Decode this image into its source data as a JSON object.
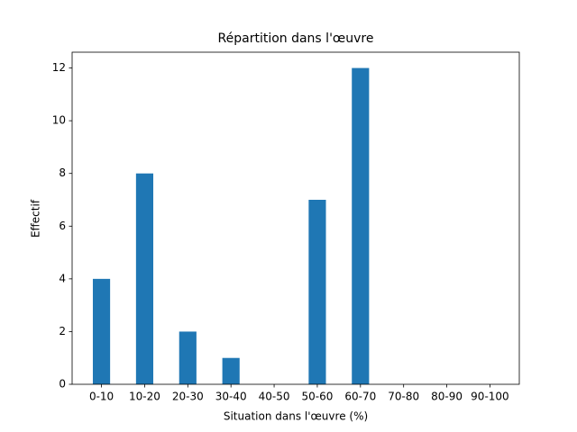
{
  "chart_data": {
    "type": "bar",
    "title": "Répartition dans l'œuvre",
    "x_label": "Situation dans l'œuvre (%)",
    "y_label": "Effectif",
    "categories": [
      "0-10",
      "10-20",
      "20-30",
      "30-40",
      "40-50",
      "50-60",
      "60-70",
      "70-80",
      "80-90",
      "90-100"
    ],
    "values": [
      4,
      8,
      2,
      1,
      0,
      7,
      12,
      0,
      0,
      0
    ],
    "color": "#1f77b4",
    "ylim": [
      0,
      12.6
    ],
    "yticks": [
      0,
      2,
      4,
      6,
      8,
      10,
      12
    ],
    "grid": false
  }
}
